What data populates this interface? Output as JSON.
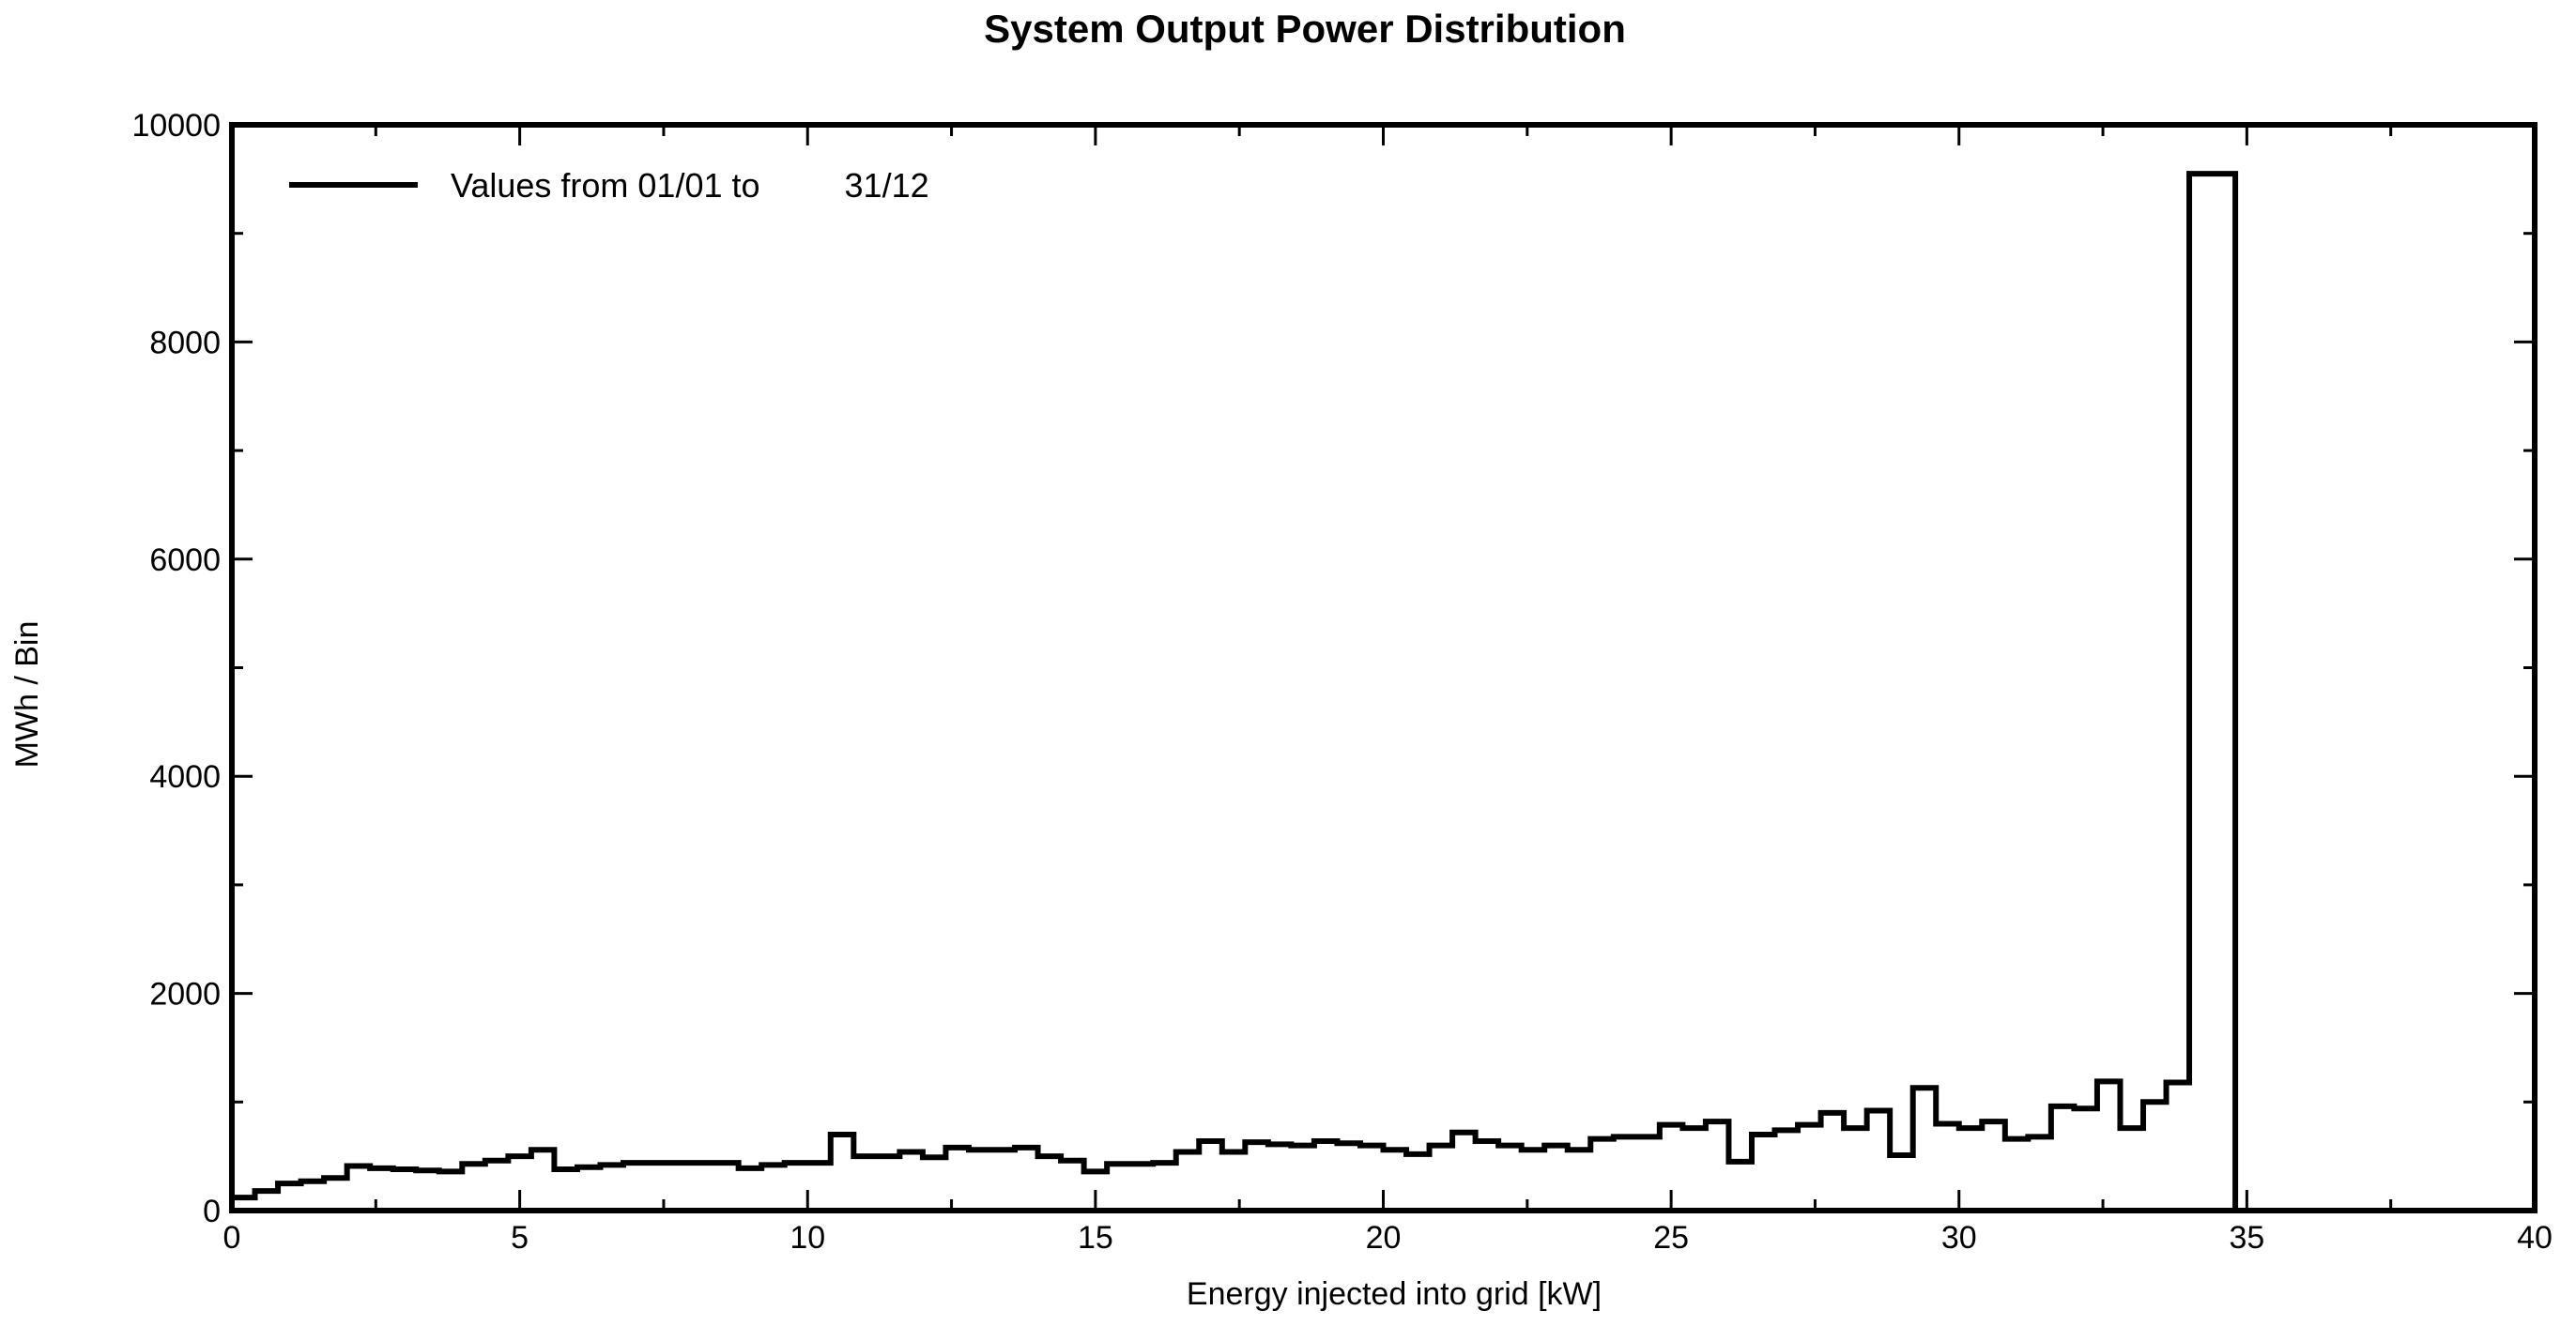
{
  "chart_data": {
    "type": "histogram-step",
    "title": "System Output Power Distribution",
    "xlabel": "Energy injected into grid [kW]",
    "ylabel": "MWh / Bin",
    "xlim": [
      0,
      40
    ],
    "ylim": [
      0,
      10000
    ],
    "x_ticks": [
      0,
      5,
      10,
      15,
      20,
      25,
      30,
      35,
      40
    ],
    "y_ticks": [
      0,
      2000,
      4000,
      6000,
      8000,
      10000
    ],
    "grid": false,
    "legend_position": "top-left",
    "bin_width": 0.4,
    "x_start": 0,
    "series": [
      {
        "name": "Values from 01/01 to         31/12",
        "color": "#000000",
        "values": [
          120,
          180,
          250,
          270,
          300,
          410,
          390,
          380,
          370,
          360,
          430,
          460,
          500,
          560,
          380,
          400,
          420,
          440,
          440,
          440,
          440,
          440,
          390,
          420,
          440,
          440,
          700,
          500,
          500,
          540,
          490,
          580,
          560,
          560,
          580,
          500,
          460,
          360,
          430,
          430,
          440,
          540,
          640,
          540,
          630,
          610,
          600,
          640,
          620,
          600,
          560,
          520,
          600,
          720,
          640,
          600,
          560,
          600,
          560,
          660,
          680,
          680,
          790,
          760,
          820,
          450,
          700,
          740,
          790,
          900,
          760,
          920,
          510,
          1130,
          800,
          760,
          820,
          660,
          680,
          960,
          940,
          1190,
          760,
          1000,
          1180,
          9550,
          9550,
          0,
          0,
          0,
          0,
          0,
          0,
          0,
          0,
          0,
          0,
          0,
          0,
          0
        ]
      }
    ]
  }
}
